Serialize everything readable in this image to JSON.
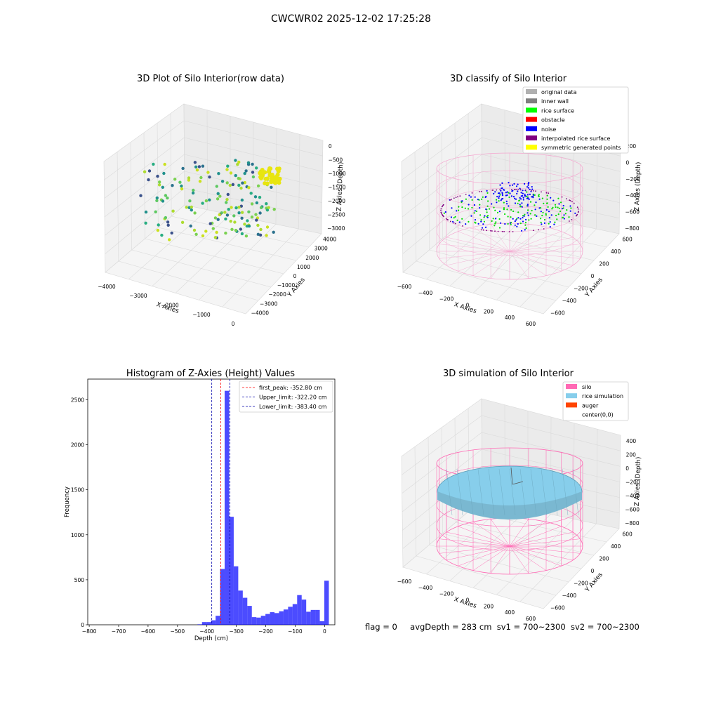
{
  "figure_title": "CWCWR02 2025-12-02 17:25:28",
  "chart_data": [
    {
      "type": "scatter",
      "projection": "3d",
      "title": "3D Plot of Silo Interior(row data)",
      "xlabel": "X Axies",
      "ylabel": "Y Axies",
      "zlabel": "Z Axies (Depth)",
      "x_ticks": [
        "−4000",
        "−3000",
        "−2000",
        "−1000",
        "0"
      ],
      "y_ticks": [
        "−4000",
        "−3000",
        "−2000",
        "−1000",
        "0",
        "1000",
        "2000",
        "3000",
        "4000"
      ],
      "z_ticks": [
        "0",
        "−500",
        "−1000",
        "−1500",
        "−2000",
        "−2500",
        "−3000"
      ],
      "colormap": "viridis"
    },
    {
      "type": "scatter",
      "projection": "3d",
      "title": "3D classify of Silo Interior",
      "xlabel": "X Axies",
      "ylabel": "Y Axies",
      "zlabel": "Z Axies (Depth)",
      "x_ticks": [
        "−600",
        "−400",
        "−200",
        "0",
        "200",
        "400",
        "600"
      ],
      "y_ticks": [
        "−600",
        "−400",
        "−200",
        "0",
        "200",
        "400",
        "600"
      ],
      "z_ticks": [
        "200",
        "0",
        "−200",
        "−400",
        "−600",
        "−800"
      ],
      "legend_position": "top-right",
      "legend": [
        {
          "label": "original data",
          "color": "#b0b0b0"
        },
        {
          "label": "inner wall",
          "color": "#808080"
        },
        {
          "label": "rice surface",
          "color": "#00ff00"
        },
        {
          "label": "obstacle",
          "color": "#ff0000"
        },
        {
          "label": "noise",
          "color": "#0000ff"
        },
        {
          "label": "interpolated rice surface",
          "color": "#800080"
        },
        {
          "label": "symmetric generated points",
          "color": "#ffff00"
        }
      ]
    },
    {
      "type": "bar",
      "subtype": "histogram",
      "title": "Histogram of Z-Axies (Height) Values",
      "xlabel": "Depth (cm)",
      "ylabel": "Frequency",
      "xlim": [
        -805,
        35
      ],
      "ylim": [
        0,
        2730
      ],
      "x_ticks": [
        "−800",
        "−700",
        "−600",
        "−500",
        "−400",
        "−300",
        "−200",
        "−100",
        "0"
      ],
      "y_ticks": [
        "0",
        "500",
        "1000",
        "1500",
        "2000",
        "2500"
      ],
      "bin_width": 15.4,
      "bin_edges_start": -432,
      "values": [
        5,
        30,
        30,
        50,
        100,
        620,
        2600,
        1200,
        650,
        380,
        300,
        210,
        85,
        80,
        100,
        120,
        140,
        130,
        150,
        170,
        200,
        230,
        330,
        280,
        145,
        165,
        165,
        40,
        490
      ],
      "bar_color": "#0000ff",
      "vlines": [
        {
          "x": -352.8,
          "color": "#ff0000",
          "label": "first_peak: -352.80 cm"
        },
        {
          "x": -322.2,
          "color": "#0000aa",
          "label": "Upper_limit: -322.20 cm"
        },
        {
          "x": -383.4,
          "color": "#0000aa",
          "label": "Lower_limit: -383.40 cm"
        }
      ],
      "legend_position": "top-right"
    },
    {
      "type": "surface",
      "projection": "3d",
      "title": "3D simulation of Silo Interior",
      "xlabel": "X Axies",
      "ylabel": "Y Axies",
      "zlabel": "Z Axies (Depth)",
      "x_ticks": [
        "−600",
        "−400",
        "−200",
        "0",
        "200",
        "400",
        "600"
      ],
      "y_ticks": [
        "−600",
        "−400",
        "−200",
        "0",
        "200",
        "400",
        "600"
      ],
      "z_ticks": [
        "400",
        "200",
        "0",
        "−200",
        "−400",
        "−600",
        "−800"
      ],
      "legend_position": "top-right",
      "legend": [
        {
          "label": "silo",
          "color": "#ff69b4"
        },
        {
          "label": "rice simulation",
          "color": "#87ceeb"
        },
        {
          "label": "auger",
          "color": "#ff4500"
        },
        {
          "label": "center(0,0)",
          "color": ""
        }
      ]
    }
  ],
  "status": {
    "flag": "flag = 0",
    "avg_depth": "avgDepth = 283 cm",
    "sv1": "sv1 = 700~2300",
    "sv2": "sv2 = 700~2300"
  }
}
